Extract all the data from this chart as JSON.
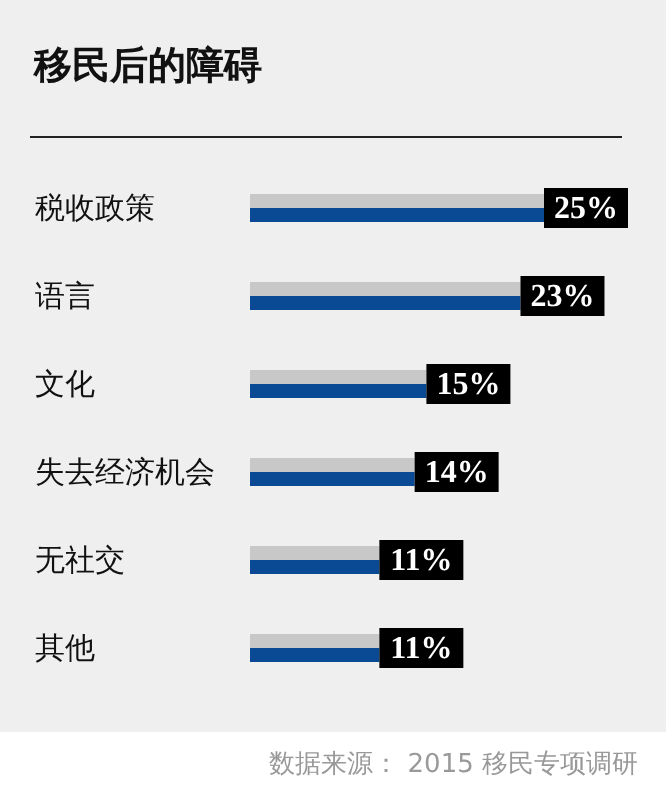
{
  "chart_data": {
    "type": "bar",
    "orientation": "horizontal",
    "title": "移民后的障碍",
    "categories": [
      "税收政策",
      "语言",
      "文化",
      "失去经济机会",
      "无社交",
      "其他"
    ],
    "values": [
      25,
      23,
      15,
      14,
      11,
      11
    ],
    "value_labels": [
      "25%",
      "23%",
      "15%",
      "14%",
      "11%",
      "11%"
    ],
    "color": "#0a4a94",
    "annotations": [
      "数据来源： 2015 移民专项调研"
    ]
  }
}
